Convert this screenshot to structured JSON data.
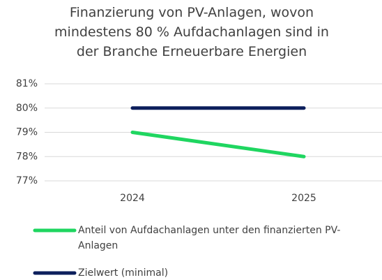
{
  "chart_data": {
    "type": "line",
    "title": "Finanzierung von PV-Anlagen, wovon mindestens 80 % Aufdachanlagen sind in der Branche Erneuerbare Energien",
    "categories": [
      "2024",
      "2025"
    ],
    "series": [
      {
        "name": "Anteil von Aufdachanlagen unter den finanzierten PV-Anlagen",
        "color": "#1fd660",
        "values": [
          79,
          78
        ]
      },
      {
        "name": "Zielwert (minimal)",
        "color": "#0c1f5c",
        "values": [
          80,
          80
        ]
      }
    ],
    "ylim": [
      77,
      81
    ],
    "yticks": [
      {
        "value": 77,
        "label": "77%"
      },
      {
        "value": 78,
        "label": "78%"
      },
      {
        "value": 79,
        "label": "79%"
      },
      {
        "value": 80,
        "label": "80%"
      },
      {
        "value": 81,
        "label": "81%"
      }
    ],
    "grid": true,
    "legend": "bottom"
  }
}
